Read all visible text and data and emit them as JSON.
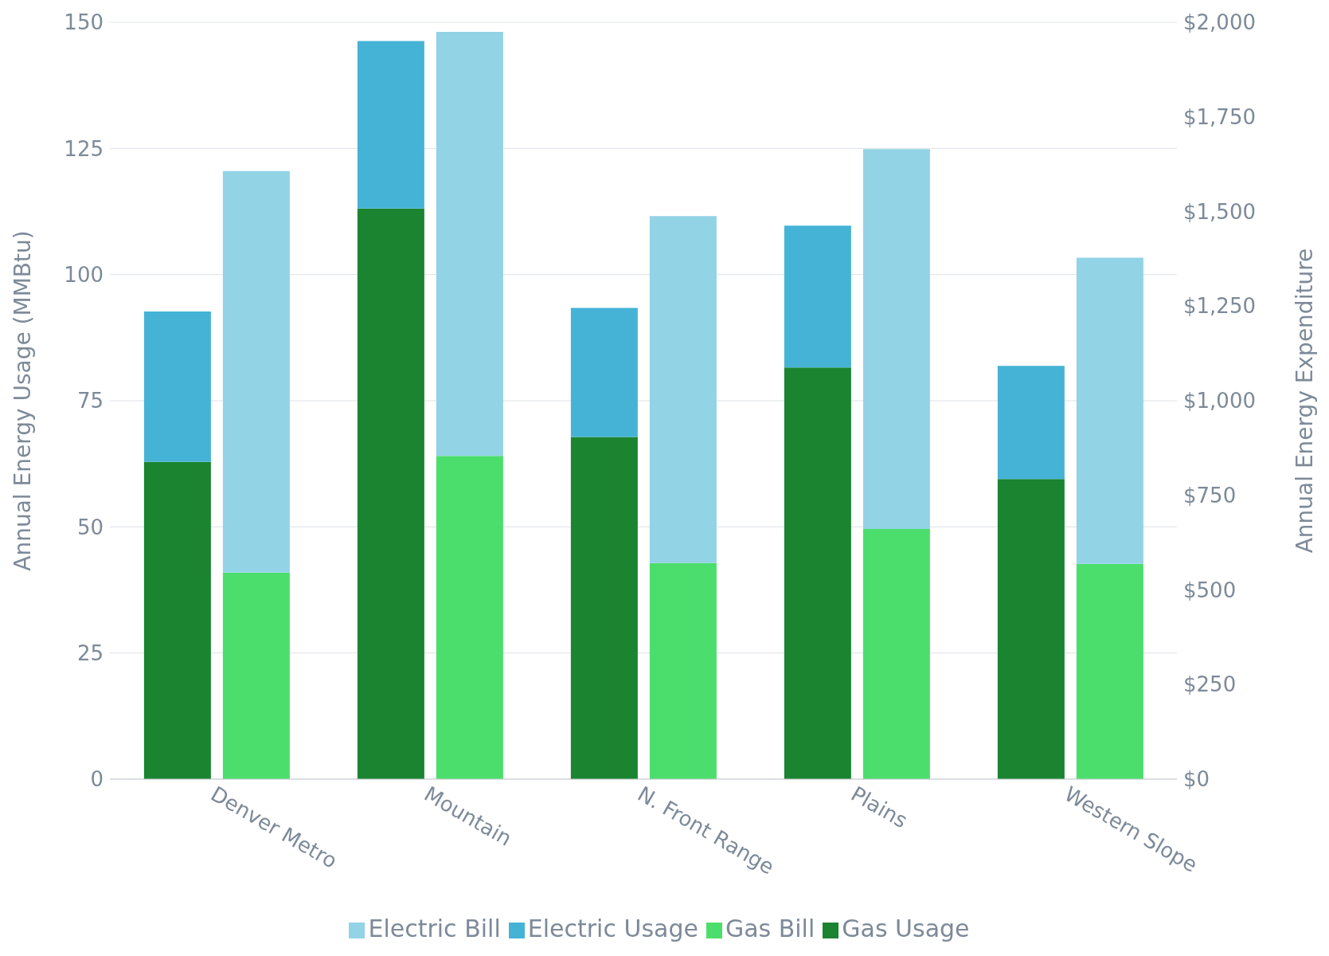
{
  "chart_data": {
    "type": "bar",
    "stacked": true,
    "categories": [
      "Denver Metro",
      "Mountain",
      "N. Front Range",
      "Plains",
      "Western Slope"
    ],
    "series": [
      {
        "name": "Gas Usage",
        "color": "#1a8431",
        "values": [
          62.9,
          113.1,
          67.8,
          81.6,
          59.5
        ]
      },
      {
        "name": "Electric Usage",
        "color": "#45b3d6",
        "values": [
          29.8,
          33.2,
          25.6,
          28.1,
          22.4
        ]
      },
      {
        "name": "Gas Bill",
        "color": "#4cde6c",
        "values": [
          546,
          854,
          571,
          661,
          569
        ],
        "axis": "y2"
      },
      {
        "name": "Electric Bill",
        "color": "#92d3e6",
        "values": [
          1061,
          1121,
          917,
          1004,
          809
        ],
        "axis": "y2"
      }
    ],
    "ylabel": "Annual Energy Usage (MMBtu)",
    "y2label": "Annual Energy Expenditure",
    "ylim": [
      0,
      150
    ],
    "yticks": [
      0,
      25,
      50,
      75,
      100,
      125,
      150
    ],
    "y2lim": [
      0,
      2000
    ],
    "y2ticks": [
      {
        "value": 0,
        "label": "$0"
      },
      {
        "value": 250,
        "label": "$250"
      },
      {
        "value": 500,
        "label": "$500"
      },
      {
        "value": 750,
        "label": "$750"
      },
      {
        "value": 1000,
        "label": "$1,000"
      },
      {
        "value": 1250,
        "label": "$1,250"
      },
      {
        "value": 1500,
        "label": "$1,500"
      },
      {
        "value": 1750,
        "label": "$1,750"
      },
      {
        "value": 2000,
        "label": "$2,000"
      }
    ],
    "grid": "y",
    "legend": "bottom"
  }
}
